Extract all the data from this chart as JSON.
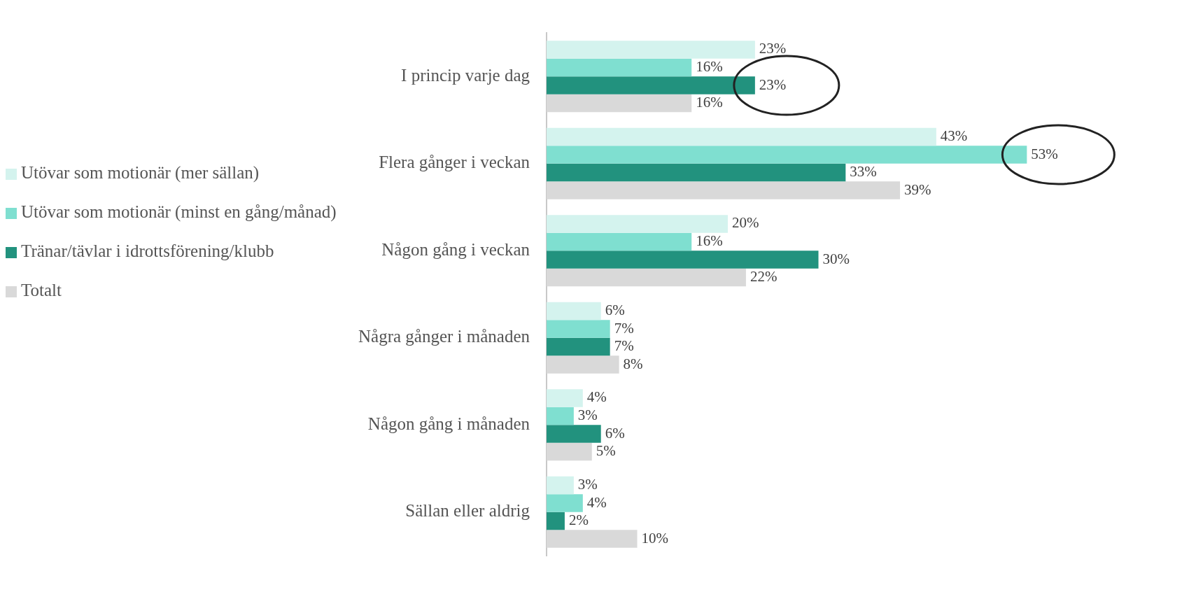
{
  "chart_data": {
    "type": "bar",
    "orientation": "horizontal",
    "categories": [
      "I princip varje dag",
      "Flera gånger i veckan",
      "Någon gång i veckan",
      "Några gånger i månaden",
      "Någon gång i månaden",
      "Sällan eller aldrig"
    ],
    "series": [
      {
        "name": "Utövar som motionär (mer sällan)",
        "color": "#d4f3ee",
        "values": [
          23,
          43,
          20,
          6,
          4,
          3
        ],
        "value_labels": [
          "23%",
          "43%",
          "20%",
          "6%",
          "4%",
          "3%"
        ]
      },
      {
        "name": "Utövar som motionär (minst en gång/månad)",
        "color": "#7fdfd0",
        "values": [
          16,
          53,
          16,
          7,
          3,
          4
        ],
        "value_labels": [
          "16%",
          "53%",
          "16%",
          "7%",
          "3%",
          "4%"
        ]
      },
      {
        "name": "Tränar/tävlar i idrottsförening/klubb",
        "color": "#22927e",
        "values": [
          23,
          33,
          30,
          7,
          6,
          2
        ],
        "value_labels": [
          "23%",
          "33%",
          "30%",
          "7%",
          "6%",
          "2%"
        ]
      },
      {
        "name": "Totalt",
        "color": "#d9d9d9",
        "values": [
          16,
          39,
          22,
          8,
          5,
          10
        ],
        "value_labels": [
          "16%",
          "39%",
          "22%",
          "8%",
          "5%",
          "10%"
        ]
      }
    ],
    "legend": "left"
  }
}
